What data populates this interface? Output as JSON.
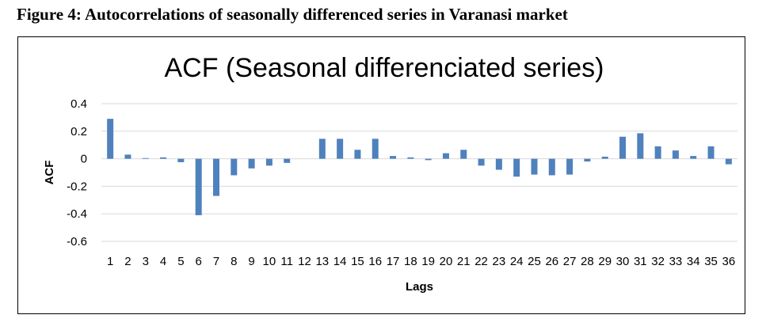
{
  "figure_caption": "Figure 4: Autocorrelations of seasonally differenced series in Varanasi market",
  "chart_data": {
    "type": "bar",
    "title": "ACF (Seasonal differenciated series)",
    "xlabel": "Lags",
    "ylabel": "ACF",
    "ylim": [
      -0.6,
      0.4
    ],
    "yticks": [
      "0.4",
      "0.2",
      "0",
      "-0.2",
      "-0.4",
      "-0.6"
    ],
    "grid": "horizontal",
    "legend": "none",
    "bar_color": "#4f81bd",
    "categories": [
      "1",
      "2",
      "3",
      "4",
      "5",
      "6",
      "7",
      "8",
      "9",
      "10",
      "11",
      "12",
      "13",
      "14",
      "15",
      "16",
      "17",
      "18",
      "19",
      "20",
      "21",
      "22",
      "23",
      "24",
      "25",
      "26",
      "27",
      "28",
      "29",
      "30",
      "31",
      "32",
      "33",
      "34",
      "35",
      "36"
    ],
    "values": [
      0.29,
      0.03,
      0.005,
      0.01,
      -0.025,
      -0.41,
      -0.27,
      -0.12,
      -0.07,
      -0.05,
      -0.03,
      0.0,
      0.145,
      0.145,
      0.065,
      0.145,
      0.02,
      0.01,
      -0.01,
      0.04,
      0.065,
      -0.05,
      -0.08,
      -0.13,
      -0.115,
      -0.12,
      -0.115,
      -0.02,
      0.015,
      0.16,
      0.185,
      0.09,
      0.06,
      0.02,
      0.09,
      -0.04
    ]
  }
}
